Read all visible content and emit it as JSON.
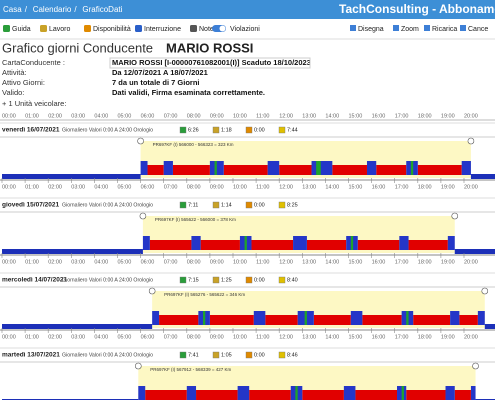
{
  "header": {
    "breadcrumb": [
      "Casa",
      "Calendario",
      "GraficoDati"
    ],
    "brand": "TachConsulting - Abbonamen"
  },
  "toolbar": {
    "left": [
      "Guida",
      "Lavoro",
      "Disponibilità",
      "Interruzione",
      "Note",
      "Violazioni"
    ],
    "right": [
      "Disegna",
      "Zoom",
      "Ricarica",
      "Cance"
    ]
  },
  "title": {
    "text": "Grafico giorni Conducente",
    "name": "MARIO ROSSI"
  },
  "info": [
    [
      "CartaConducente :",
      "MARIO ROSSI  [I-00000761082001(I)] Scaduto 18/10/2023"
    ],
    [
      "Attività:",
      "Da 12/07/2021 A 18/07/2021"
    ],
    [
      "Attivo Giorni:",
      "7 da un totale di 7 Giorni"
    ],
    [
      "Valido:",
      "Dati validi, Firma esaminata correttamente."
    ]
  ],
  "vehicles": "+ 1 Unità veicolare:",
  "hours": [
    "00:00",
    "01:00",
    "02:00",
    "03:00",
    "04:00",
    "05:00",
    "06:00",
    "07:00",
    "08:00",
    "09:00",
    "10:00",
    "11:00",
    "12:00",
    "13:00",
    "14:00",
    "15:00",
    "16:00",
    "17:00",
    "18:00",
    "19:00",
    "20:00"
  ],
  "days": [
    {
      "date": "venerdì 16/07/2021",
      "info": "Giornaliero Valori 0:00 A 24:00 Orologio",
      "totals": [
        "6:26",
        "1:18",
        "0:00",
        "7:44"
      ],
      "vehicle": "PR697KF (I) 566000 - 566323 = 323 Km",
      "span": [
        6.0,
        20.3
      ],
      "guida": [
        [
          6.3,
          7.0
        ],
        [
          7.4,
          9.0
        ],
        [
          9.6,
          11.5
        ],
        [
          12.0,
          13.4
        ],
        [
          14.3,
          15.8
        ],
        [
          16.2,
          17.5
        ],
        [
          18.0,
          19.9
        ]
      ],
      "lavoro": [
        [
          6.0,
          6.3
        ],
        [
          7.0,
          7.4
        ],
        [
          9.0,
          9.6
        ],
        [
          11.5,
          12.0
        ],
        [
          13.4,
          14.3
        ],
        [
          15.8,
          16.2
        ],
        [
          17.5,
          18.0
        ],
        [
          19.9,
          20.3
        ]
      ],
      "disponibilita": [
        [
          9.2,
          9.3
        ],
        [
          13.6,
          13.8
        ],
        [
          17.7,
          17.8
        ]
      ],
      "riposo": [
        [
          0,
          6.0
        ],
        [
          20.3,
          24
        ]
      ]
    },
    {
      "date": "giovedì 15/07/2021",
      "info": "Giornaliero Valori 0:00 A 24:00 Orologio",
      "totals": [
        "7:11",
        "1:14",
        "0:00",
        "8:25"
      ],
      "vehicle": "PR697KF (I) 565622 - 566000 = 378 Km",
      "span": [
        6.1,
        19.6
      ],
      "guida": [
        [
          6.4,
          8.2
        ],
        [
          8.6,
          10.3
        ],
        [
          10.8,
          12.6
        ],
        [
          13.2,
          14.9
        ],
        [
          15.4,
          17.2
        ],
        [
          17.6,
          19.3
        ]
      ],
      "lavoro": [
        [
          6.1,
          6.4
        ],
        [
          8.2,
          8.6
        ],
        [
          10.3,
          10.8
        ],
        [
          12.6,
          13.2
        ],
        [
          14.9,
          15.4
        ],
        [
          17.2,
          17.6
        ],
        [
          19.3,
          19.6
        ]
      ],
      "disponibilita": [
        [
          10.5,
          10.6
        ],
        [
          15.1,
          15.2
        ]
      ],
      "riposo": [
        [
          0,
          6.1
        ],
        [
          19.6,
          24
        ]
      ]
    },
    {
      "date": "mercoledì 14/07/2021",
      "info": "Giornaliero Valori 0:00 A 24:00 Orologio",
      "totals": [
        "7:15",
        "1:25",
        "0:00",
        "8:40"
      ],
      "vehicle": "PR697KF (I) 565276 - 565622 = 346 Km",
      "span": [
        6.5,
        20.9
      ],
      "guida": [
        [
          6.8,
          8.5
        ],
        [
          9.0,
          10.9
        ],
        [
          11.4,
          12.8
        ],
        [
          13.5,
          15.1
        ],
        [
          15.6,
          17.3
        ],
        [
          17.8,
          19.4
        ],
        [
          19.8,
          20.6
        ]
      ],
      "lavoro": [
        [
          6.5,
          6.8
        ],
        [
          8.5,
          9.0
        ],
        [
          10.9,
          11.4
        ],
        [
          12.8,
          13.5
        ],
        [
          15.1,
          15.6
        ],
        [
          17.3,
          17.8
        ],
        [
          19.4,
          19.8
        ],
        [
          20.6,
          20.9
        ]
      ],
      "disponibilita": [
        [
          8.7,
          8.8
        ],
        [
          13.1,
          13.2
        ],
        [
          17.5,
          17.6
        ]
      ],
      "riposo": [
        [
          0,
          6.5
        ],
        [
          20.9,
          24
        ]
      ]
    },
    {
      "date": "martedì 13/07/2021",
      "info": "Giornaliero Valori 0:00 A 24:00 Orologio",
      "totals": [
        "7:41",
        "1:05",
        "0:00",
        "8:46"
      ],
      "vehicle": "PR697KF (I) 567912 - 568339 = 427 Km",
      "span": [
        5.9,
        20.5
      ],
      "guida": [
        [
          6.2,
          8.0
        ],
        [
          8.4,
          10.2
        ],
        [
          10.7,
          12.5
        ],
        [
          13.0,
          14.8
        ],
        [
          15.3,
          17.1
        ],
        [
          17.5,
          19.2
        ],
        [
          19.6,
          20.3
        ]
      ],
      "lavoro": [
        [
          5.9,
          6.2
        ],
        [
          8.0,
          8.4
        ],
        [
          10.2,
          10.7
        ],
        [
          12.5,
          13.0
        ],
        [
          14.8,
          15.3
        ],
        [
          17.1,
          17.5
        ],
        [
          19.2,
          19.6
        ],
        [
          20.3,
          20.5
        ]
      ],
      "disponibilita": [
        [
          12.7,
          12.8
        ],
        [
          17.3,
          17.4
        ]
      ],
      "riposo": [
        [
          0,
          5.9
        ],
        [
          20.5,
          24
        ]
      ]
    }
  ]
}
